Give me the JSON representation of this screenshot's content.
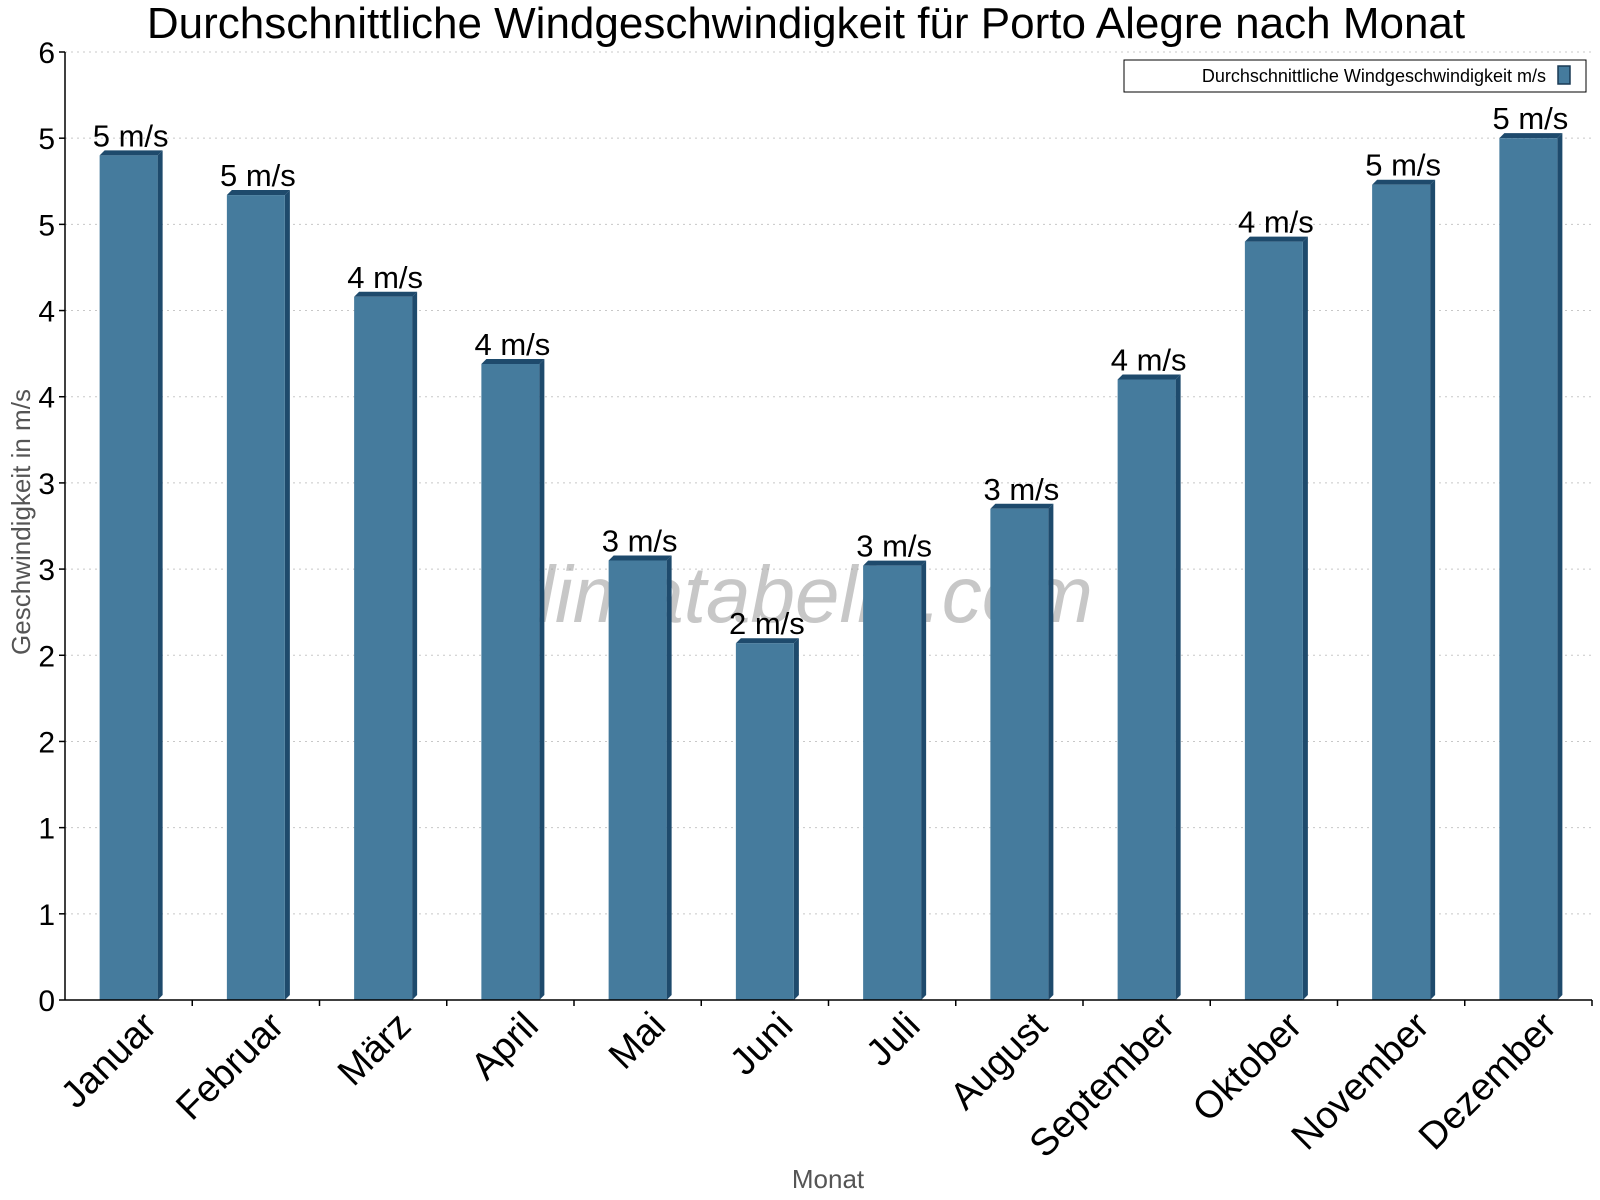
{
  "chart_data": {
    "type": "bar",
    "title": "Durchschnittliche Windgeschwindigkeit für Porto Alegre nach Monat",
    "xlabel": "Monat",
    "ylabel": "Geschwindigkeit in m/s",
    "ylim": [
      0,
      5.5
    ],
    "grid": true,
    "y_ticks": [
      {
        "value": 0,
        "label": "0"
      },
      {
        "value": 0.5,
        "label": "1"
      },
      {
        "value": 1.0,
        "label": "1"
      },
      {
        "value": 1.5,
        "label": "2"
      },
      {
        "value": 2.0,
        "label": "2"
      },
      {
        "value": 2.5,
        "label": "3"
      },
      {
        "value": 3.0,
        "label": "3"
      },
      {
        "value": 3.5,
        "label": "4"
      },
      {
        "value": 4.0,
        "label": "4"
      },
      {
        "value": 4.5,
        "label": "5"
      },
      {
        "value": 5.0,
        "label": "5"
      },
      {
        "value": 5.5,
        "label": "6"
      }
    ],
    "categories": [
      "Januar",
      "Februar",
      "März",
      "April",
      "Mai",
      "Juni",
      "Juli",
      "August",
      "September",
      "Oktober",
      "November",
      "Dezember"
    ],
    "series": [
      {
        "name": "Durchschnittliche Windgeschwindigkeit m/s",
        "color": "#457b9d",
        "values": [
          4.9,
          4.67,
          4.08,
          3.69,
          2.55,
          2.07,
          2.52,
          2.85,
          3.6,
          4.4,
          4.73,
          5.0
        ],
        "data_labels": [
          "5 m/s",
          "5 m/s",
          "4 m/s",
          "4 m/s",
          "3 m/s",
          "2 m/s",
          "3 m/s",
          "3 m/s",
          "4 m/s",
          "4 m/s",
          "5 m/s",
          "5 m/s"
        ]
      }
    ],
    "legend": {
      "position": "top-right"
    },
    "watermark": "klimatabelle.com"
  }
}
